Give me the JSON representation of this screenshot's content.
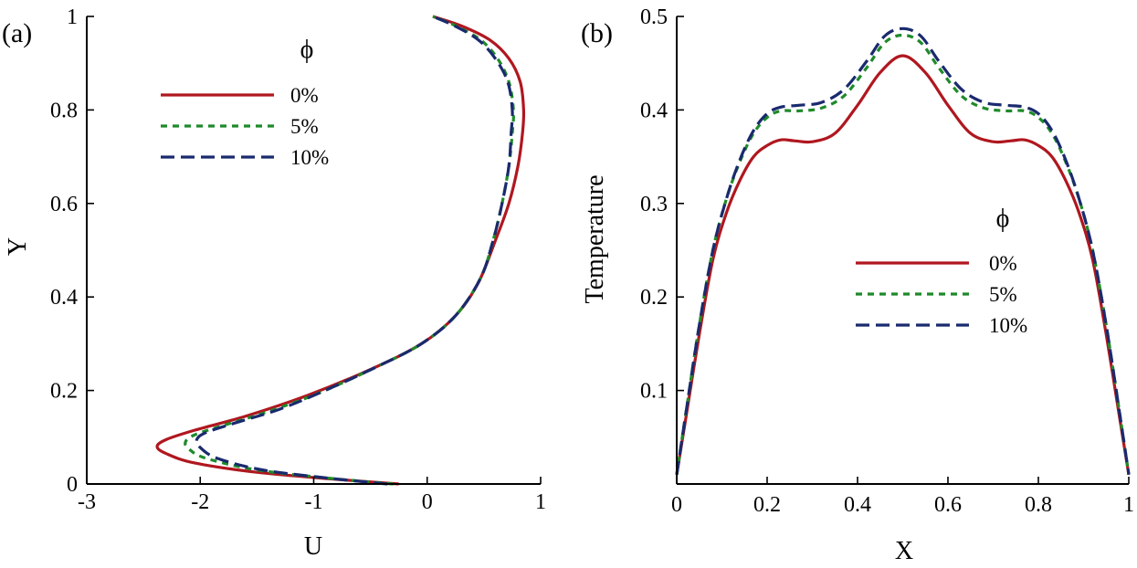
{
  "chart_data": [
    {
      "panel_label": "(a)",
      "type": "line",
      "xlabel": "U",
      "ylabel": "Y",
      "xlim": [
        -3,
        1
      ],
      "ylim": [
        0,
        1
      ],
      "xticks": [
        -3,
        -2,
        -1,
        0,
        1
      ],
      "yticks": [
        0,
        0.2,
        0.4,
        0.6,
        0.8,
        1
      ],
      "xtick_labels": [
        "-3",
        "-2",
        "-1",
        "0",
        "1"
      ],
      "ytick_labels": [
        "0",
        "0.2",
        "0.4",
        "0.6",
        "0.8",
        "1"
      ],
      "legend_title": "ϕ",
      "legend_position": "top-center",
      "series": [
        {
          "name": "0%",
          "color": "#b0171f",
          "dash": "solid",
          "points": [
            [
              -0.25,
              0.0
            ],
            [
              -0.8,
              0.01
            ],
            [
              -1.5,
              0.025
            ],
            [
              -2.05,
              0.045
            ],
            [
              -2.3,
              0.065
            ],
            [
              -2.38,
              0.08
            ],
            [
              -2.3,
              0.095
            ],
            [
              -2.05,
              0.115
            ],
            [
              -1.6,
              0.145
            ],
            [
              -1.05,
              0.19
            ],
            [
              -0.5,
              0.245
            ],
            [
              -0.05,
              0.3
            ],
            [
              0.25,
              0.36
            ],
            [
              0.45,
              0.43
            ],
            [
              0.6,
              0.52
            ],
            [
              0.72,
              0.6
            ],
            [
              0.8,
              0.68
            ],
            [
              0.84,
              0.75
            ],
            [
              0.85,
              0.8
            ],
            [
              0.82,
              0.86
            ],
            [
              0.72,
              0.91
            ],
            [
              0.55,
              0.95
            ],
            [
              0.3,
              0.98
            ],
            [
              0.05,
              1.0
            ]
          ]
        },
        {
          "name": "5%",
          "color": "#1f8a2a",
          "dash": "short-dash",
          "points": [
            [
              -0.3,
              0.0
            ],
            [
              -0.85,
              0.012
            ],
            [
              -1.5,
              0.03
            ],
            [
              -1.95,
              0.055
            ],
            [
              -2.1,
              0.075
            ],
            [
              -2.13,
              0.09
            ],
            [
              -2.05,
              0.105
            ],
            [
              -1.8,
              0.125
            ],
            [
              -1.4,
              0.155
            ],
            [
              -0.95,
              0.195
            ],
            [
              -0.45,
              0.25
            ],
            [
              -0.05,
              0.3
            ],
            [
              0.25,
              0.36
            ],
            [
              0.47,
              0.44
            ],
            [
              0.58,
              0.52
            ],
            [
              0.66,
              0.6
            ],
            [
              0.72,
              0.68
            ],
            [
              0.75,
              0.75
            ],
            [
              0.76,
              0.8
            ],
            [
              0.72,
              0.86
            ],
            [
              0.62,
              0.91
            ],
            [
              0.47,
              0.95
            ],
            [
              0.25,
              0.98
            ],
            [
              0.05,
              1.0
            ]
          ]
        },
        {
          "name": "10%",
          "color": "#1a2a6e",
          "dash": "long-dash",
          "points": [
            [
              -0.35,
              0.0
            ],
            [
              -0.85,
              0.012
            ],
            [
              -1.45,
              0.03
            ],
            [
              -1.85,
              0.055
            ],
            [
              -2.0,
              0.078
            ],
            [
              -2.03,
              0.095
            ],
            [
              -1.95,
              0.11
            ],
            [
              -1.7,
              0.13
            ],
            [
              -1.3,
              0.16
            ],
            [
              -0.9,
              0.2
            ],
            [
              -0.45,
              0.25
            ],
            [
              -0.05,
              0.3
            ],
            [
              0.25,
              0.36
            ],
            [
              0.47,
              0.44
            ],
            [
              0.58,
              0.52
            ],
            [
              0.66,
              0.6
            ],
            [
              0.72,
              0.68
            ],
            [
              0.74,
              0.75
            ],
            [
              0.75,
              0.8
            ],
            [
              0.71,
              0.86
            ],
            [
              0.6,
              0.91
            ],
            [
              0.45,
              0.95
            ],
            [
              0.24,
              0.98
            ],
            [
              0.05,
              1.0
            ]
          ]
        }
      ]
    },
    {
      "panel_label": "(b)",
      "type": "line",
      "xlabel": "X",
      "ylabel": "Temperature",
      "xlim": [
        0,
        1
      ],
      "ylim": [
        0,
        0.5
      ],
      "xticks": [
        0,
        0.2,
        0.4,
        0.6,
        0.8,
        1
      ],
      "yticks": [
        0.1,
        0.2,
        0.3,
        0.4,
        0.5
      ],
      "xtick_labels": [
        "0",
        "0.2",
        "0.4",
        "0.6",
        "0.8",
        "1"
      ],
      "ytick_labels": [
        "0.1",
        "0.2",
        "0.3",
        "0.4",
        "0.5"
      ],
      "legend_title": "ϕ",
      "legend_position": "center-right",
      "series": [
        {
          "name": "0%",
          "color": "#b0171f",
          "dash": "solid",
          "points": [
            [
              0.0,
              0.01
            ],
            [
              0.02,
              0.07
            ],
            [
              0.05,
              0.16
            ],
            [
              0.08,
              0.24
            ],
            [
              0.11,
              0.29
            ],
            [
              0.14,
              0.325
            ],
            [
              0.17,
              0.35
            ],
            [
              0.2,
              0.362
            ],
            [
              0.23,
              0.368
            ],
            [
              0.26,
              0.367
            ],
            [
              0.3,
              0.366
            ],
            [
              0.35,
              0.375
            ],
            [
              0.4,
              0.405
            ],
            [
              0.45,
              0.44
            ],
            [
              0.5,
              0.458
            ],
            [
              0.55,
              0.44
            ],
            [
              0.6,
              0.405
            ],
            [
              0.65,
              0.375
            ],
            [
              0.7,
              0.366
            ],
            [
              0.74,
              0.367
            ],
            [
              0.77,
              0.368
            ],
            [
              0.8,
              0.362
            ],
            [
              0.83,
              0.35
            ],
            [
              0.86,
              0.325
            ],
            [
              0.89,
              0.29
            ],
            [
              0.92,
              0.24
            ],
            [
              0.95,
              0.16
            ],
            [
              0.98,
              0.07
            ],
            [
              1.0,
              0.01
            ]
          ]
        },
        {
          "name": "5%",
          "color": "#1f8a2a",
          "dash": "short-dash",
          "points": [
            [
              0.0,
              0.01
            ],
            [
              0.02,
              0.075
            ],
            [
              0.05,
              0.17
            ],
            [
              0.08,
              0.25
            ],
            [
              0.11,
              0.305
            ],
            [
              0.14,
              0.345
            ],
            [
              0.17,
              0.375
            ],
            [
              0.2,
              0.392
            ],
            [
              0.23,
              0.399
            ],
            [
              0.27,
              0.399
            ],
            [
              0.32,
              0.402
            ],
            [
              0.37,
              0.415
            ],
            [
              0.42,
              0.445
            ],
            [
              0.46,
              0.472
            ],
            [
              0.5,
              0.48
            ],
            [
              0.54,
              0.472
            ],
            [
              0.58,
              0.445
            ],
            [
              0.63,
              0.415
            ],
            [
              0.68,
              0.402
            ],
            [
              0.73,
              0.399
            ],
            [
              0.77,
              0.399
            ],
            [
              0.8,
              0.392
            ],
            [
              0.83,
              0.375
            ],
            [
              0.86,
              0.345
            ],
            [
              0.89,
              0.305
            ],
            [
              0.92,
              0.25
            ],
            [
              0.95,
              0.17
            ],
            [
              0.98,
              0.075
            ],
            [
              1.0,
              0.01
            ]
          ]
        },
        {
          "name": "10%",
          "color": "#1a2a6e",
          "dash": "long-dash",
          "points": [
            [
              0.0,
              0.01
            ],
            [
              0.02,
              0.075
            ],
            [
              0.05,
              0.17
            ],
            [
              0.08,
              0.25
            ],
            [
              0.11,
              0.305
            ],
            [
              0.14,
              0.347
            ],
            [
              0.17,
              0.378
            ],
            [
              0.2,
              0.396
            ],
            [
              0.23,
              0.403
            ],
            [
              0.27,
              0.405
            ],
            [
              0.32,
              0.408
            ],
            [
              0.37,
              0.422
            ],
            [
              0.42,
              0.452
            ],
            [
              0.46,
              0.479
            ],
            [
              0.5,
              0.487
            ],
            [
              0.54,
              0.479
            ],
            [
              0.58,
              0.452
            ],
            [
              0.63,
              0.422
            ],
            [
              0.68,
              0.408
            ],
            [
              0.73,
              0.405
            ],
            [
              0.77,
              0.403
            ],
            [
              0.8,
              0.396
            ],
            [
              0.83,
              0.378
            ],
            [
              0.86,
              0.347
            ],
            [
              0.89,
              0.305
            ],
            [
              0.92,
              0.25
            ],
            [
              0.95,
              0.17
            ],
            [
              0.98,
              0.075
            ],
            [
              1.0,
              0.01
            ]
          ]
        }
      ]
    }
  ]
}
